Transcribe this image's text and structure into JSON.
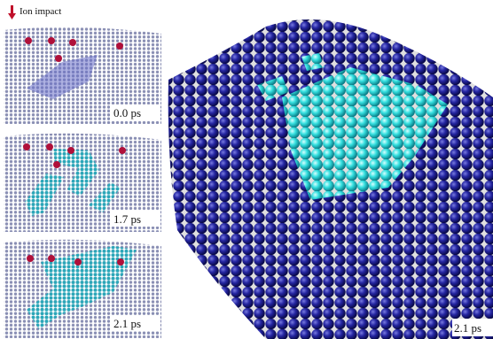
{
  "header": {
    "label": "Ion impact"
  },
  "panels": [
    {
      "time": "0.0 ps"
    },
    {
      "time": "1.7 ps"
    },
    {
      "time": "2.1 ps"
    }
  ],
  "main_panel": {
    "time": "2.1 ps"
  }
}
